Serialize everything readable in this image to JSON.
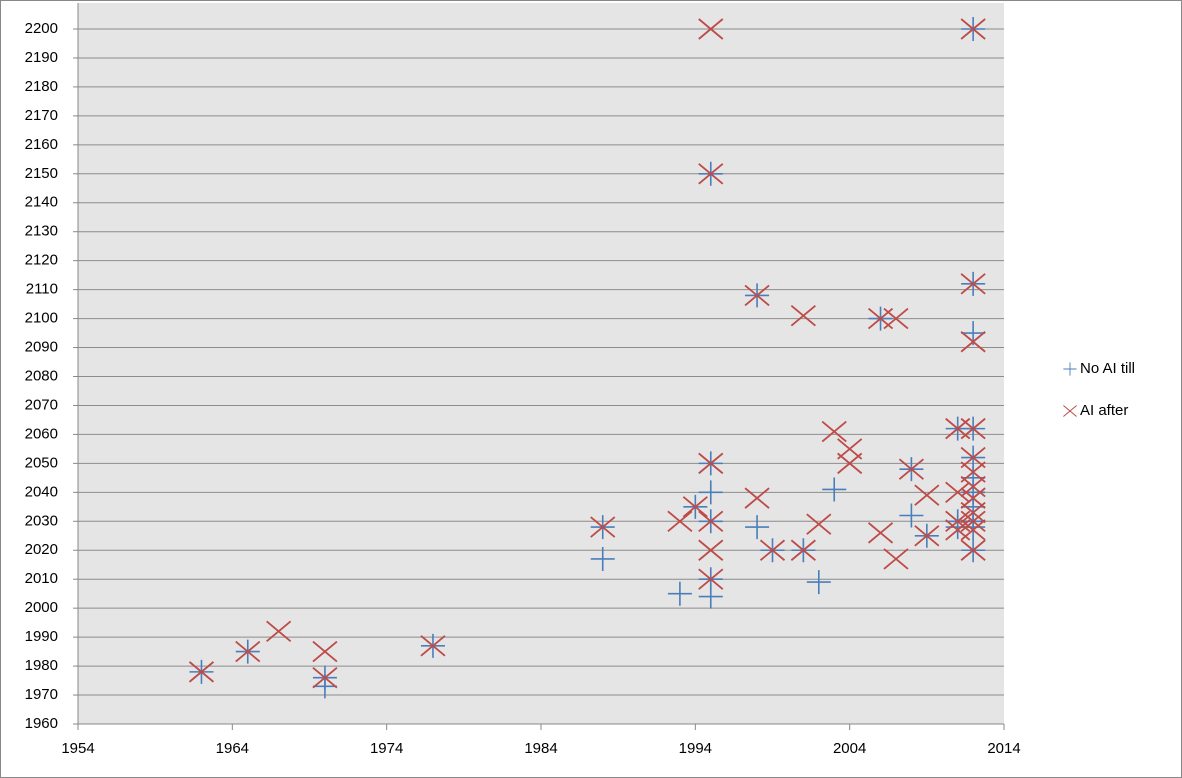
{
  "chart_data": {
    "type": "scatter",
    "xlim": [
      1954,
      2014
    ],
    "xticks": [
      1954,
      1964,
      1974,
      1984,
      1994,
      2004,
      2014
    ],
    "ylim": [
      1960,
      2200
    ],
    "yticks": [
      1960,
      1970,
      1980,
      1990,
      2000,
      2010,
      2020,
      2030,
      2040,
      2050,
      2060,
      2070,
      2080,
      2090,
      2100,
      2110,
      2120,
      2130,
      2140,
      2150,
      2160,
      2170,
      2180,
      2190,
      2200
    ],
    "grid": true,
    "legend": "right",
    "series": [
      {
        "name": "No AI till",
        "color": "#4a7ebb",
        "marker": "plus",
        "x": [
          1962,
          1965,
          1970,
          1970,
          1977,
          1988,
          1988,
          1993,
          1994,
          1995,
          1995,
          1995,
          1995,
          1995,
          1995,
          1998,
          1998,
          1999,
          2001,
          2002,
          2003,
          2006,
          2008,
          2008,
          2009,
          2011,
          2011,
          2011,
          2012,
          2012,
          2012,
          2012,
          2012,
          2012,
          2012,
          2012,
          2012,
          2012,
          2012
        ],
        "y": [
          1978,
          1985,
          1976,
          1973,
          1987,
          2017,
          2028,
          2005,
          2035,
          2150,
          2050,
          2040,
          2030,
          2010,
          2004,
          2108,
          2028,
          2020,
          2020,
          2009,
          2041,
          2100,
          2048,
          2032,
          2025,
          2062,
          2030,
          2028,
          2200,
          2112,
          2095,
          2062,
          2052,
          2045,
          2040,
          2035,
          2030,
          2028,
          2020
        ]
      },
      {
        "name": "AI after",
        "color": "#be4b48",
        "marker": "cross",
        "x": [
          1962,
          1965,
          1967,
          1970,
          1970,
          1977,
          1988,
          1993,
          1994,
          1995,
          1995,
          1995,
          1995,
          1995,
          1995,
          1998,
          1998,
          1999,
          2001,
          2001,
          2002,
          2003,
          2004,
          2004,
          2006,
          2006,
          2007,
          2007,
          2008,
          2009,
          2009,
          2011,
          2011,
          2011,
          2011,
          2012,
          2012,
          2012,
          2012,
          2012,
          2012,
          2012,
          2012,
          2012,
          2012,
          2012,
          2012
        ],
        "y": [
          1978,
          1985,
          1992,
          1985,
          1976,
          1987,
          2028,
          2030,
          2035,
          2200,
          2150,
          2050,
          2030,
          2020,
          2010,
          2108,
          2038,
          2020,
          2101,
          2020,
          2029,
          2061,
          2055,
          2050,
          2026,
          2100,
          2100,
          2017,
          2048,
          2039,
          2025,
          2062,
          2040,
          2030,
          2027,
          2200,
          2112,
          2092,
          2062,
          2052,
          2047,
          2042,
          2038,
          2033,
          2030,
          2027,
          2020
        ]
      }
    ]
  }
}
